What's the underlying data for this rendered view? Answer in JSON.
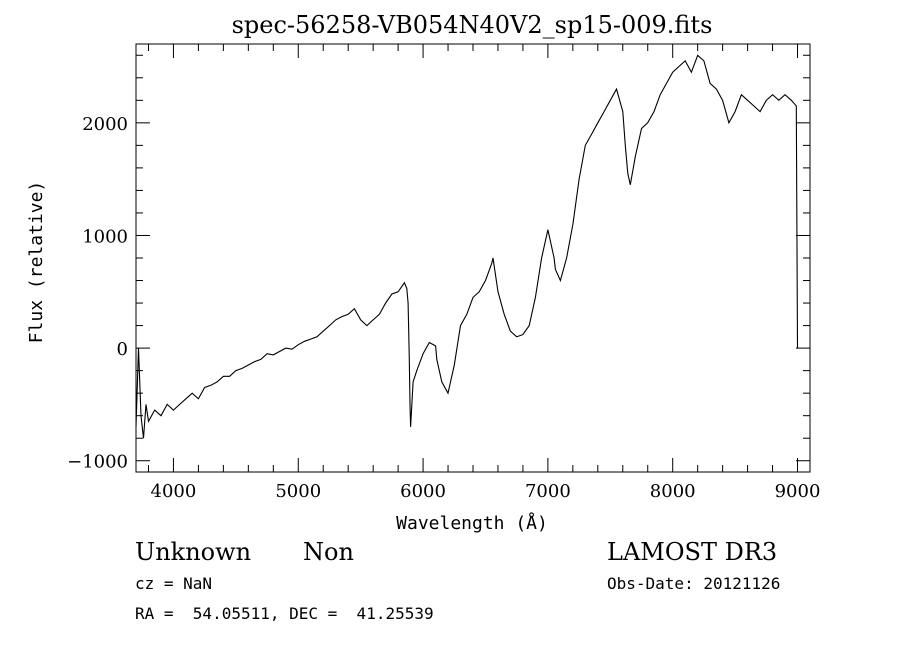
{
  "chart_data": {
    "type": "line",
    "title": "spec-56258-VB054N40V2_sp15-009.fits",
    "xlabel": "Wavelength (Å)",
    "ylabel": "Flux (relative)",
    "xlim": [
      3700,
      9100
    ],
    "ylim": [
      -1100,
      2700
    ],
    "x_ticks": [
      4000,
      5000,
      6000,
      7000,
      8000,
      9000
    ],
    "x_tick_labels": [
      "4000",
      "5000",
      "6000",
      "7000",
      "8000",
      "9000"
    ],
    "y_ticks": [
      -1000,
      0,
      1000,
      2000
    ],
    "y_tick_labels": [
      "−1000",
      "0",
      "1000",
      "2000"
    ],
    "grid": false,
    "series_color": "#000000",
    "series": [
      {
        "x": [
          3700,
          3720,
          3740,
          3760,
          3780,
          3800,
          3850,
          3900,
          3950,
          4000,
          4050,
          4100,
          4150,
          4200,
          4250,
          4300,
          4350,
          4400,
          4450,
          4500,
          4550,
          4600,
          4650,
          4700,
          4750,
          4800,
          4850,
          4900,
          4950,
          5000,
          5050,
          5100,
          5150,
          5200,
          5250,
          5300,
          5350,
          5400,
          5450,
          5500,
          5550,
          5600,
          5650,
          5700,
          5750,
          5800,
          5850,
          5870,
          5880,
          5890,
          5895,
          5900,
          5920,
          5950,
          6000,
          6050,
          6100,
          6110,
          6150,
          6200,
          6250,
          6300,
          6350,
          6400,
          6450,
          6500,
          6550,
          6560,
          6600,
          6650,
          6700,
          6750,
          6800,
          6850,
          6900,
          6950,
          7000,
          7050,
          7060,
          7100,
          7150,
          7200,
          7250,
          7300,
          7350,
          7400,
          7450,
          7500,
          7550,
          7600,
          7620,
          7640,
          7660,
          7700,
          7750,
          7800,
          7850,
          7900,
          7950,
          8000,
          8050,
          8100,
          8150,
          8200,
          8250,
          8300,
          8350,
          8400,
          8450,
          8500,
          8550,
          8600,
          8650,
          8700,
          8750,
          8800,
          8850,
          8900,
          8950,
          8990,
          9000
        ],
        "y": [
          -700,
          0,
          -600,
          -800,
          -500,
          -650,
          -550,
          -600,
          -500,
          -550,
          -500,
          -450,
          -400,
          -450,
          -350,
          -330,
          -300,
          -250,
          -250,
          -200,
          -180,
          -150,
          -120,
          -100,
          -50,
          -60,
          -30,
          0,
          -10,
          30,
          60,
          80,
          100,
          150,
          200,
          250,
          280,
          300,
          350,
          250,
          200,
          250,
          300,
          400,
          480,
          500,
          580,
          530,
          400,
          -100,
          -500,
          -700,
          -300,
          -200,
          -50,
          50,
          20,
          -100,
          -300,
          -400,
          -150,
          200,
          300,
          450,
          500,
          600,
          750,
          800,
          500,
          300,
          150,
          100,
          120,
          200,
          450,
          800,
          1050,
          800,
          700,
          600,
          800,
          1100,
          1500,
          1800,
          1900,
          2000,
          2100,
          2200,
          2300,
          2100,
          1800,
          1550,
          1450,
          1700,
          1950,
          2000,
          2100,
          2250,
          2350,
          2450,
          2500,
          2550,
          2450,
          2600,
          2550,
          2350,
          2300,
          2200,
          2000,
          2100,
          2250,
          2200,
          2150,
          2100,
          2200,
          2250,
          2200,
          2250,
          2200,
          2150,
          0
        ]
      }
    ]
  },
  "info": {
    "object_class": "Unknown",
    "subclass": "Non",
    "survey": "LAMOST DR3",
    "redshift": "cz = NaN",
    "obs_date": "Obs-Date: 20121126",
    "coords": "RA =  54.05511, DEC =  41.25539"
  }
}
